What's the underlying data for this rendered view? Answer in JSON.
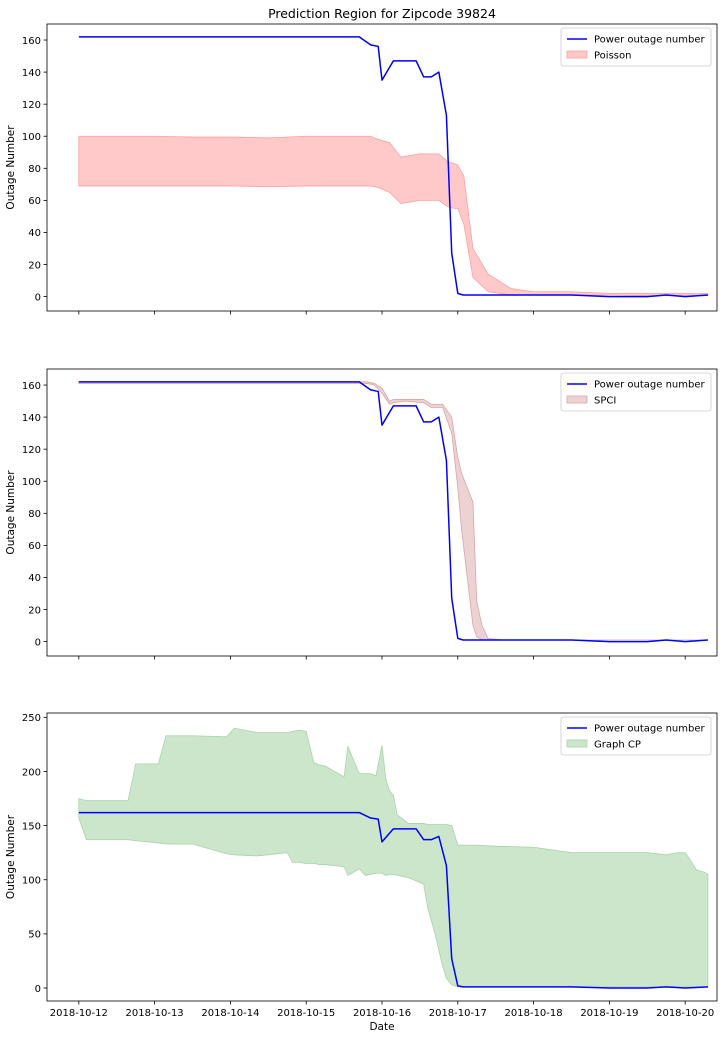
{
  "figure_title": "Prediction Region for Zipcode 39824",
  "colors": {
    "actual_line": "#0000ff",
    "poisson_fill": "#ffc9c9",
    "poisson_edge": "#ff9f9f",
    "spci_fill": "#ecd2d2",
    "spci_edge": "#d8a6a6",
    "graphcp_fill": "#cce6cc",
    "graphcp_edge": "#a9d3a9"
  },
  "chart_data": [
    {
      "type": "line",
      "title": "Prediction Region for Zipcode 39824",
      "xlabel": "",
      "ylabel": "Outage Number",
      "xlim": [
        -0.42,
        8.42
      ],
      "ylim": [
        -9,
        170
      ],
      "yticks": [
        0,
        20,
        40,
        60,
        80,
        100,
        120,
        140,
        160
      ],
      "xtick_labels": [],
      "legend_position": "top-right",
      "legend": [
        "Power outage number",
        "Poisson"
      ],
      "band": {
        "name": "Poisson",
        "x": [
          0,
          0.5,
          1,
          1.5,
          2,
          2.5,
          3,
          3.5,
          3.85,
          3.95,
          4.1,
          4.25,
          4.5,
          4.6,
          4.75,
          4.87,
          4.95,
          5.0,
          5.08,
          5.2,
          5.4,
          5.7,
          6,
          6.5,
          7,
          7.5,
          8,
          8.3
        ],
        "upper": [
          100,
          100,
          100,
          99.5,
          99.5,
          99,
          100,
          100,
          100,
          98,
          96,
          87,
          89,
          89,
          89,
          84,
          83,
          82,
          75,
          30,
          14,
          5,
          3,
          3,
          2,
          2,
          2,
          2
        ],
        "lower": [
          69,
          69,
          69,
          69,
          69,
          68.5,
          69,
          69,
          69,
          68,
          65,
          58,
          60,
          60,
          60,
          56,
          55,
          55,
          45,
          12,
          3,
          1,
          1,
          1,
          1,
          0.5,
          0.5,
          0.5
        ]
      },
      "series": [
        {
          "name": "Power outage number",
          "x": [
            0,
            1,
            2,
            3,
            3.7,
            3.85,
            3.95,
            4.0,
            4.1,
            4.15,
            4.35,
            4.45,
            4.55,
            4.65,
            4.75,
            4.85,
            4.92,
            5.0,
            5.07,
            5.15,
            5.5,
            5.9,
            6.0,
            6.5,
            7.0,
            7.5,
            7.75,
            8.0,
            8.3
          ],
          "values": [
            162,
            162,
            162,
            162,
            162,
            157,
            156,
            135,
            143,
            147,
            147,
            147,
            137,
            137,
            140,
            113,
            27,
            2,
            1,
            1,
            1,
            1,
            1,
            1,
            0,
            0,
            1,
            0,
            1
          ]
        }
      ]
    },
    {
      "type": "line",
      "xlabel": "",
      "ylabel": "Outage Number",
      "xlim": [
        -0.42,
        8.42
      ],
      "ylim": [
        -9,
        170
      ],
      "yticks": [
        0,
        20,
        40,
        60,
        80,
        100,
        120,
        140,
        160
      ],
      "xtick_labels": [],
      "legend_position": "top-right",
      "legend": [
        "Power outage number",
        "SPCI"
      ],
      "band": {
        "name": "SPCI",
        "x": [
          0,
          1,
          2,
          3,
          3.8,
          3.9,
          4.0,
          4.1,
          4.15,
          4.3,
          4.55,
          4.65,
          4.8,
          4.92,
          5.0,
          5.05,
          5.2,
          5.25,
          5.32,
          5.4,
          5.6,
          6,
          8.3
        ],
        "upper": [
          162,
          162,
          162,
          162,
          162,
          161,
          158,
          150,
          151,
          151,
          151,
          148,
          148,
          140,
          115,
          105,
          87,
          25,
          10,
          2,
          1,
          1,
          1
        ],
        "lower": [
          161,
          161,
          161,
          161,
          161,
          160,
          155,
          148,
          149,
          150,
          149,
          146,
          146,
          130,
          96,
          70,
          10,
          3,
          1,
          1,
          1,
          1,
          1
        ]
      },
      "series": [
        {
          "name": "Power outage number",
          "x": [
            0,
            1,
            2,
            3,
            3.7,
            3.85,
            3.95,
            4.0,
            4.1,
            4.15,
            4.35,
            4.45,
            4.55,
            4.65,
            4.75,
            4.85,
            4.92,
            5.0,
            5.07,
            5.15,
            5.5,
            5.9,
            6.0,
            6.5,
            7.0,
            7.5,
            7.75,
            8.0,
            8.3
          ],
          "values": [
            162,
            162,
            162,
            162,
            162,
            157,
            156,
            135,
            143,
            147,
            147,
            147,
            137,
            137,
            140,
            113,
            27,
            2,
            1,
            1,
            1,
            1,
            1,
            1,
            0,
            0,
            1,
            0,
            1
          ]
        }
      ]
    },
    {
      "type": "line",
      "xlabel": "Date",
      "ylabel": "Outage Number",
      "xlim": [
        -0.42,
        8.42
      ],
      "ylim": [
        -12,
        254
      ],
      "yticks": [
        0,
        50,
        100,
        150,
        200,
        250
      ],
      "xtick_labels": [
        "2018-10-12",
        "2018-10-13",
        "2018-10-14",
        "2018-10-15",
        "2018-10-16",
        "2018-10-17",
        "2018-10-18",
        "2018-10-19",
        "2018-10-20"
      ],
      "legend_position": "top-right",
      "legend": [
        "Power outage number",
        "Graph CP"
      ],
      "band": {
        "name": "Graph CP",
        "x": [
          0,
          0.1,
          0.65,
          0.75,
          1.05,
          1.15,
          1.5,
          1.95,
          2.05,
          2.35,
          2.75,
          2.82,
          2.9,
          3.0,
          3.1,
          3.18,
          3.25,
          3.5,
          3.55,
          3.7,
          3.78,
          3.85,
          3.92,
          4.0,
          4.05,
          4.1,
          4.15,
          4.2,
          4.35,
          4.55,
          4.6,
          4.7,
          4.8,
          4.85,
          4.92,
          5.0,
          5.05,
          5.1,
          5.15,
          5.25,
          5.5,
          6.0,
          6.5,
          7.0,
          7.5,
          7.75,
          7.9,
          8.0,
          8.05,
          8.15,
          8.25,
          8.3
        ],
        "upper": [
          175,
          173,
          173,
          207,
          207,
          233,
          233,
          232,
          240,
          236,
          236,
          237,
          238,
          237,
          208,
          206,
          205,
          195,
          223,
          198,
          198,
          198,
          196,
          224,
          193,
          182,
          178,
          160,
          152,
          152,
          151,
          151,
          151,
          151,
          150,
          132,
          132,
          132,
          132,
          132,
          131,
          130,
          125,
          125,
          125,
          123,
          125,
          125,
          120,
          109,
          107,
          105
        ],
        "lower": [
          157,
          137,
          137,
          136,
          134,
          133,
          133,
          124,
          123,
          122,
          125,
          116,
          116,
          115,
          115,
          114,
          114,
          112,
          104,
          110,
          104,
          105,
          106,
          106,
          104,
          105,
          105,
          104,
          102,
          96,
          75,
          50,
          20,
          9,
          3,
          1,
          1,
          1,
          1,
          1,
          1,
          1,
          1,
          1,
          1,
          1,
          1,
          1,
          1,
          1,
          1,
          1
        ]
      },
      "series": [
        {
          "name": "Power outage number",
          "x": [
            0,
            1,
            2,
            3,
            3.7,
            3.85,
            3.95,
            4.0,
            4.1,
            4.15,
            4.35,
            4.45,
            4.55,
            4.65,
            4.75,
            4.85,
            4.92,
            5.0,
            5.07,
            5.15,
            5.5,
            5.9,
            6.0,
            6.5,
            7.0,
            7.5,
            7.75,
            8.0,
            8.3
          ],
          "values": [
            162,
            162,
            162,
            162,
            162,
            157,
            156,
            135,
            143,
            147,
            147,
            147,
            137,
            137,
            140,
            113,
            27,
            2,
            1,
            1,
            1,
            1,
            1,
            1,
            0,
            0,
            1,
            0,
            1
          ]
        }
      ]
    }
  ]
}
